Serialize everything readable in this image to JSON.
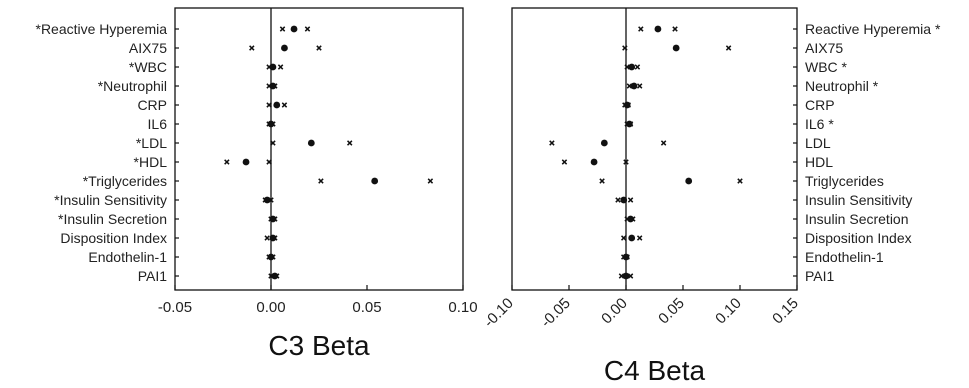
{
  "chart_data": [
    {
      "type": "scatter",
      "xlabel": "C3 Beta",
      "xlim": [
        -0.05,
        0.1
      ],
      "xticks": [
        "-0.05",
        "0.00",
        "0.05",
        "0.10"
      ],
      "xtick_values": [
        -0.05,
        0.0,
        0.05,
        0.1
      ],
      "categories": [
        "Reactive Hyperemia",
        "AIX75",
        "WBC",
        "Neutrophil",
        "CRP",
        "IL6",
        "LDL",
        "HDL",
        "Triglycerides",
        "Insulin Sensitivity",
        "Insulin Secretion",
        "Disposition Index",
        "Endothelin-1",
        "PAI1"
      ],
      "starred": [
        true,
        false,
        true,
        true,
        false,
        false,
        true,
        true,
        true,
        true,
        true,
        false,
        false,
        false
      ],
      "beta": [
        0.012,
        0.007,
        0.001,
        0.001,
        0.003,
        0.0,
        0.021,
        -0.013,
        0.054,
        -0.002,
        0.001,
        0.001,
        0.0,
        0.002
      ],
      "lower": [
        0.006,
        -0.01,
        -0.001,
        -0.001,
        -0.001,
        -0.001,
        0.001,
        -0.023,
        0.026,
        -0.003,
        0.0,
        -0.002,
        -0.001,
        0.0
      ],
      "upper": [
        0.019,
        0.025,
        0.005,
        0.002,
        0.007,
        0.001,
        0.041,
        -0.001,
        0.083,
        0.0,
        0.002,
        0.002,
        0.001,
        0.003
      ]
    },
    {
      "type": "scatter",
      "xlabel": "C4 Beta",
      "xlim": [
        -0.1,
        0.15
      ],
      "xticks": [
        "-0.10",
        "-0.05",
        "0.00",
        "0.05",
        "0.10",
        "0.15"
      ],
      "xtick_values": [
        -0.1,
        -0.05,
        0.0,
        0.05,
        0.1,
        0.15
      ],
      "categories": [
        "Reactive Hyperemia",
        "AIX75",
        "WBC",
        "Neutrophil",
        "CRP",
        "IL6",
        "LDL",
        "HDL",
        "Triglycerides",
        "Insulin Sensitivity",
        "Insulin Secretion",
        "Disposition Index",
        "Endothelin-1",
        "PAI1"
      ],
      "starred": [
        true,
        false,
        true,
        true,
        false,
        true,
        false,
        false,
        false,
        false,
        false,
        false,
        false,
        false
      ],
      "beta": [
        0.028,
        0.044,
        0.005,
        0.007,
        0.001,
        0.003,
        -0.019,
        -0.028,
        0.055,
        -0.002,
        0.004,
        0.005,
        0.0,
        0.0
      ],
      "lower": [
        0.013,
        -0.001,
        0.001,
        0.003,
        -0.001,
        0.001,
        -0.065,
        -0.054,
        -0.021,
        -0.007,
        0.001,
        -0.002,
        -0.002,
        -0.004
      ],
      "upper": [
        0.043,
        0.09,
        0.01,
        0.012,
        0.002,
        0.004,
        0.033,
        0.0,
        0.1,
        0.004,
        0.006,
        0.012,
        0.001,
        0.004
      ]
    }
  ]
}
